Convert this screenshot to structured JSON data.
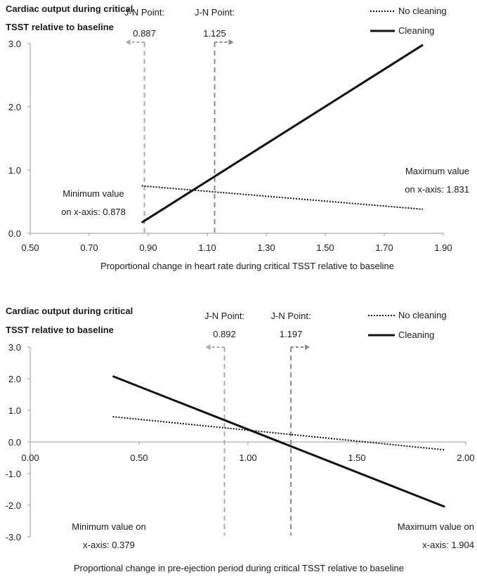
{
  "chart_data": [
    {
      "type": "line",
      "title": "Cardiac output during critical TSST relative to baseline",
      "title_lines": [
        "Cardiac output during critical",
        "TSST relative to baseline"
      ],
      "xlabel": "Proportional change in heart rate during critical TSST relative to baseline",
      "ylabel": "",
      "xlim": [
        0.5,
        1.9
      ],
      "ylim": [
        0.0,
        3.0
      ],
      "x_ticks": [
        0.5,
        0.7,
        0.9,
        1.1,
        1.3,
        1.5,
        1.7,
        1.9
      ],
      "x_tick_labels": [
        "0.50",
        "0.70",
        "0.90",
        "1.10",
        "1.30",
        "1.50",
        "1.70",
        "1.90"
      ],
      "y_ticks": [
        0,
        1,
        2,
        3
      ],
      "y_tick_labels": [
        "0.0",
        "1.0",
        "2.0",
        "3.0"
      ],
      "legend_position": "top-right",
      "series": [
        {
          "name": "No cleaning",
          "style": "dotted",
          "x": [
            0.878,
            1.831
          ],
          "y": [
            0.75,
            0.38
          ]
        },
        {
          "name": "Cleaning",
          "style": "solid",
          "x": [
            0.878,
            1.831
          ],
          "y": [
            0.17,
            2.98
          ]
        }
      ],
      "jn_points": [
        {
          "label": "J-N Point:",
          "value": "0.887",
          "x": 0.887,
          "direction": "left",
          "color": "#aaaaaa"
        },
        {
          "label": "J-N Point:",
          "value": "1.125",
          "x": 1.125,
          "direction": "right",
          "color": "#888888"
        }
      ],
      "annotations": [
        {
          "lines": [
            "Minimum value",
            "on x-axis: 0.878"
          ],
          "anchor": "middle"
        },
        {
          "lines": [
            "Maximum value",
            "on x-axis: 1.831"
          ],
          "anchor": "end"
        }
      ]
    },
    {
      "type": "line",
      "title": "Cardiac output during critical TSST relative to baseline",
      "title_lines": [
        "Cardiac output during critical",
        "TSST relative to baseline"
      ],
      "xlabel": "Proportional change in pre-ejection period during critical TSST relative to baseline",
      "ylabel": "",
      "xlim": [
        0.0,
        2.0
      ],
      "ylim": [
        -3.0,
        3.0
      ],
      "x_ticks": [
        0.0,
        0.5,
        1.0,
        1.5,
        2.0
      ],
      "x_tick_labels": [
        "0.00",
        "0.50",
        "1.00",
        "1.50",
        "2.00"
      ],
      "y_ticks": [
        -3,
        -2,
        -1,
        0,
        1,
        2,
        3
      ],
      "y_tick_labels": [
        "-3.0",
        "-2.0",
        "-1.0",
        "0.0",
        "1.0",
        "2.0",
        "3.0"
      ],
      "legend_position": "top-right",
      "series": [
        {
          "name": "No cleaning",
          "style": "dotted",
          "x": [
            0.379,
            1.904
          ],
          "y": [
            0.8,
            -0.25
          ]
        },
        {
          "name": "Cleaning",
          "style": "solid",
          "x": [
            0.379,
            1.904
          ],
          "y": [
            2.08,
            -2.05
          ]
        }
      ],
      "jn_points": [
        {
          "label": "J-N Point:",
          "value": "0.892",
          "x": 0.892,
          "direction": "left",
          "color": "#aaaaaa"
        },
        {
          "label": "J-N Point:",
          "value": "1.197",
          "x": 1.197,
          "direction": "right",
          "color": "#888888"
        }
      ],
      "annotations": [
        {
          "lines": [
            "Minimum value on",
            "x-axis: 0.379"
          ],
          "anchor": "middle"
        },
        {
          "lines": [
            "Maximum value on",
            "x-axis: 1.904"
          ],
          "anchor": "end"
        }
      ]
    }
  ]
}
